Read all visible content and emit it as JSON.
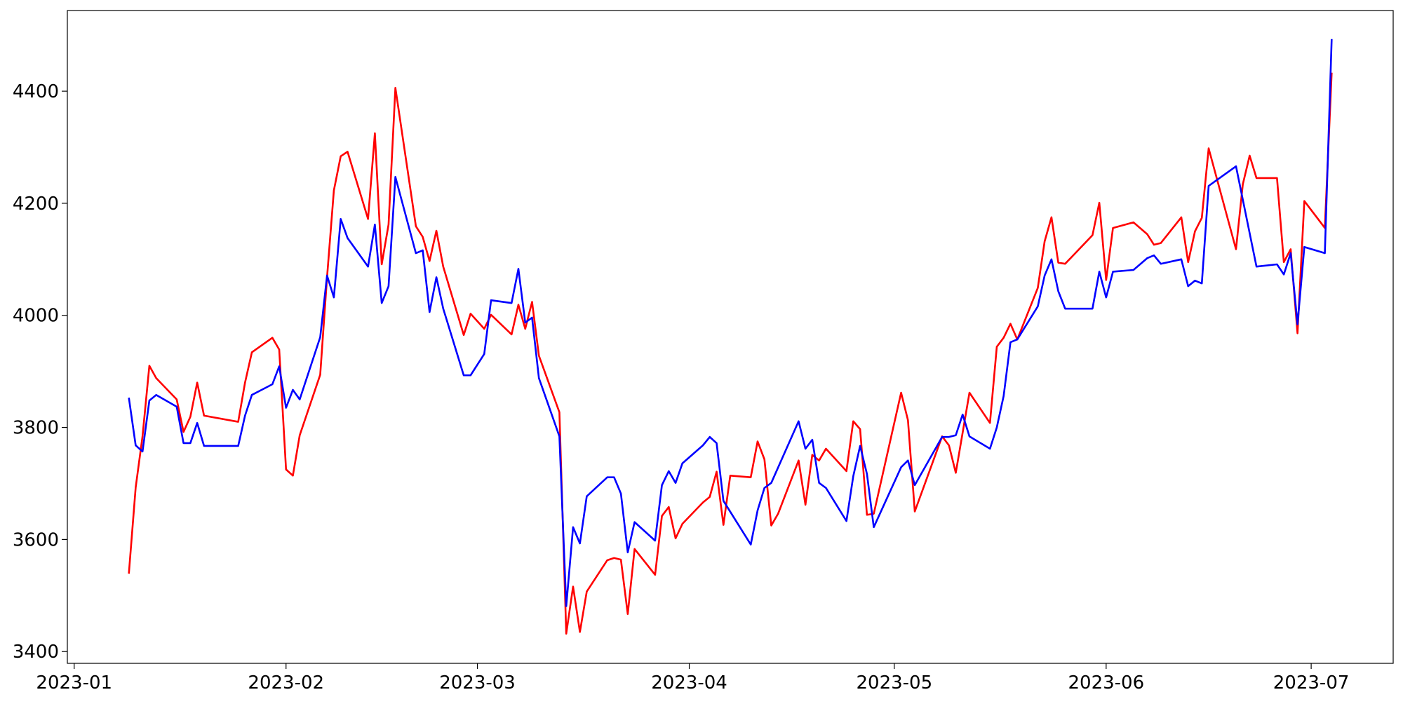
{
  "chart_data": {
    "type": "line",
    "xlim": [
      "2022-12-31",
      "2023-07-13"
    ],
    "ylim": [
      3379,
      4544
    ],
    "xticks": [
      {
        "value": "2023-01-01",
        "label": "2023-01"
      },
      {
        "value": "2023-02-01",
        "label": "2023-02"
      },
      {
        "value": "2023-03-01",
        "label": "2023-03"
      },
      {
        "value": "2023-04-01",
        "label": "2023-04"
      },
      {
        "value": "2023-05-01",
        "label": "2023-05"
      },
      {
        "value": "2023-06-01",
        "label": "2023-06"
      },
      {
        "value": "2023-07-01",
        "label": "2023-07"
      }
    ],
    "yticks": [
      3400,
      3600,
      3800,
      4000,
      4200,
      4400
    ],
    "series": [
      {
        "color": "#ff0000",
        "x": [
          "2023-01-09",
          "2023-01-10",
          "2023-01-11",
          "2023-01-12",
          "2023-01-13",
          "2023-01-16",
          "2023-01-17",
          "2023-01-18",
          "2023-01-19",
          "2023-01-20",
          "2023-01-25",
          "2023-01-26",
          "2023-01-27",
          "2023-01-30",
          "2023-01-31",
          "2023-02-01",
          "2023-02-02",
          "2023-02-03",
          "2023-02-06",
          "2023-02-07",
          "2023-02-08",
          "2023-02-09",
          "2023-02-10",
          "2023-02-13",
          "2023-02-14",
          "2023-02-15",
          "2023-02-16",
          "2023-02-17",
          "2023-02-20",
          "2023-02-21",
          "2023-02-22",
          "2023-02-23",
          "2023-02-24",
          "2023-02-27",
          "2023-02-28",
          "2023-03-02",
          "2023-03-03",
          "2023-03-06",
          "2023-03-07",
          "2023-03-08",
          "2023-03-09",
          "2023-03-10",
          "2023-03-13",
          "2023-03-14",
          "2023-03-15",
          "2023-03-16",
          "2023-03-17",
          "2023-03-20",
          "2023-03-21",
          "2023-03-22",
          "2023-03-23",
          "2023-03-24",
          "2023-03-27",
          "2023-03-28",
          "2023-03-29",
          "2023-03-30",
          "2023-03-31",
          "2023-04-03",
          "2023-04-04",
          "2023-04-05",
          "2023-04-06",
          "2023-04-07",
          "2023-04-10",
          "2023-04-11",
          "2023-04-12",
          "2023-04-13",
          "2023-04-14",
          "2023-04-17",
          "2023-04-18",
          "2023-04-19",
          "2023-04-20",
          "2023-04-21",
          "2023-04-24",
          "2023-04-25",
          "2023-04-26",
          "2023-04-27",
          "2023-04-28",
          "2023-05-02",
          "2023-05-03",
          "2023-05-04",
          "2023-05-08",
          "2023-05-09",
          "2023-05-10",
          "2023-05-12",
          "2023-05-15",
          "2023-05-16",
          "2023-05-17",
          "2023-05-18",
          "2023-05-19",
          "2023-05-22",
          "2023-05-23",
          "2023-05-24",
          "2023-05-25",
          "2023-05-26",
          "2023-05-30",
          "2023-05-31",
          "2023-06-01",
          "2023-06-02",
          "2023-06-05",
          "2023-06-07",
          "2023-06-08",
          "2023-06-09",
          "2023-06-12",
          "2023-06-13",
          "2023-06-14",
          "2023-06-15",
          "2023-06-16",
          "2023-06-20",
          "2023-06-21",
          "2023-06-22",
          "2023-06-23",
          "2023-06-26",
          "2023-06-27",
          "2023-06-28",
          "2023-06-29",
          "2023-06-30",
          "2023-07-03",
          "2023-07-04"
        ],
        "values": [
          3539,
          3693,
          3784,
          3910,
          3888,
          3850,
          3792,
          3819,
          3880,
          3821,
          3810,
          3880,
          3934,
          3960,
          3939,
          3725,
          3714,
          3786,
          3894,
          4068,
          4223,
          4284,
          4292,
          4172,
          4325,
          4091,
          4162,
          4406,
          4159,
          4140,
          4097,
          4151,
          4087,
          3965,
          4003,
          3976,
          4001,
          3966,
          4019,
          3976,
          4024,
          3928,
          3827,
          3432,
          3516,
          3435,
          3507,
          3563,
          3567,
          3564,
          3467,
          3583,
          3537,
          3642,
          3658,
          3602,
          3628,
          3666,
          3676,
          3721,
          3626,
          3714,
          3711,
          3775,
          3743,
          3625,
          3646,
          3741,
          3662,
          3751,
          3741,
          3762,
          3722,
          3811,
          3797,
          3644,
          3646,
          3862,
          3813,
          3650,
          3784,
          3768,
          3719,
          3862,
          3808,
          3944,
          3960,
          3985,
          3957,
          4049,
          4132,
          4175,
          4094,
          4092,
          4143,
          4201,
          4063,
          4156,
          4166,
          4145,
          4126,
          4129,
          4175,
          4095,
          4150,
          4174,
          4298,
          4118,
          4234,
          4285,
          4245,
          4245,
          4095,
          4118,
          3968,
          4204,
          4156,
          4433
        ]
      },
      {
        "color": "#0000ff",
        "x": [
          "2023-01-09",
          "2023-01-10",
          "2023-01-11",
          "2023-01-12",
          "2023-01-13",
          "2023-01-16",
          "2023-01-17",
          "2023-01-18",
          "2023-01-19",
          "2023-01-20",
          "2023-01-25",
          "2023-01-26",
          "2023-01-27",
          "2023-01-30",
          "2023-01-31",
          "2023-02-01",
          "2023-02-02",
          "2023-02-03",
          "2023-02-06",
          "2023-02-07",
          "2023-02-08",
          "2023-02-09",
          "2023-02-10",
          "2023-02-13",
          "2023-02-14",
          "2023-02-15",
          "2023-02-16",
          "2023-02-17",
          "2023-02-20",
          "2023-02-21",
          "2023-02-22",
          "2023-02-23",
          "2023-02-24",
          "2023-02-27",
          "2023-02-28",
          "2023-03-02",
          "2023-03-03",
          "2023-03-06",
          "2023-03-07",
          "2023-03-08",
          "2023-03-09",
          "2023-03-10",
          "2023-03-13",
          "2023-03-14",
          "2023-03-15",
          "2023-03-16",
          "2023-03-17",
          "2023-03-20",
          "2023-03-21",
          "2023-03-22",
          "2023-03-23",
          "2023-03-24",
          "2023-03-27",
          "2023-03-28",
          "2023-03-29",
          "2023-03-30",
          "2023-03-31",
          "2023-04-03",
          "2023-04-04",
          "2023-04-05",
          "2023-04-06",
          "2023-04-10",
          "2023-04-11",
          "2023-04-12",
          "2023-04-13",
          "2023-04-17",
          "2023-04-18",
          "2023-04-19",
          "2023-04-20",
          "2023-04-21",
          "2023-04-24",
          "2023-04-25",
          "2023-04-26",
          "2023-04-27",
          "2023-04-28",
          "2023-05-02",
          "2023-05-03",
          "2023-05-04",
          "2023-05-08",
          "2023-05-09",
          "2023-05-10",
          "2023-05-11",
          "2023-05-12",
          "2023-05-15",
          "2023-05-16",
          "2023-05-17",
          "2023-05-18",
          "2023-05-19",
          "2023-05-22",
          "2023-05-23",
          "2023-05-24",
          "2023-05-25",
          "2023-05-26",
          "2023-05-30",
          "2023-05-31",
          "2023-06-01",
          "2023-06-02",
          "2023-06-05",
          "2023-06-07",
          "2023-06-08",
          "2023-06-09",
          "2023-06-12",
          "2023-06-13",
          "2023-06-14",
          "2023-06-15",
          "2023-06-16",
          "2023-06-20",
          "2023-06-23",
          "2023-06-26",
          "2023-06-27",
          "2023-06-28",
          "2023-06-29",
          "2023-06-30",
          "2023-07-03",
          "2023-07-04"
        ],
        "values": [
          3853,
          3768,
          3757,
          3848,
          3858,
          3837,
          3772,
          3772,
          3808,
          3767,
          3767,
          3821,
          3858,
          3877,
          3909,
          3835,
          3867,
          3850,
          3961,
          4071,
          4032,
          4172,
          4138,
          4087,
          4162,
          4022,
          4052,
          4247,
          4111,
          4116,
          4006,
          4068,
          4012,
          3893,
          3893,
          3931,
          4027,
          4022,
          4083,
          3987,
          3996,
          3888,
          3784,
          3481,
          3622,
          3593,
          3677,
          3711,
          3711,
          3682,
          3577,
          3631,
          3598,
          3697,
          3722,
          3701,
          3736,
          3768,
          3783,
          3772,
          3669,
          3591,
          3652,
          3692,
          3701,
          3811,
          3762,
          3778,
          3701,
          3692,
          3633,
          3713,
          3767,
          3717,
          3622,
          3729,
          3741,
          3697,
          3783,
          3783,
          3786,
          3823,
          3784,
          3762,
          3800,
          3856,
          3952,
          3957,
          4016,
          4071,
          4100,
          4043,
          4012,
          4012,
          4078,
          4032,
          4078,
          4081,
          4102,
          4107,
          4092,
          4100,
          4052,
          4062,
          4057,
          4231,
          4266,
          4087,
          4091,
          4073,
          4111,
          3984,
          4122,
          4111,
          4493
        ]
      }
    ]
  }
}
